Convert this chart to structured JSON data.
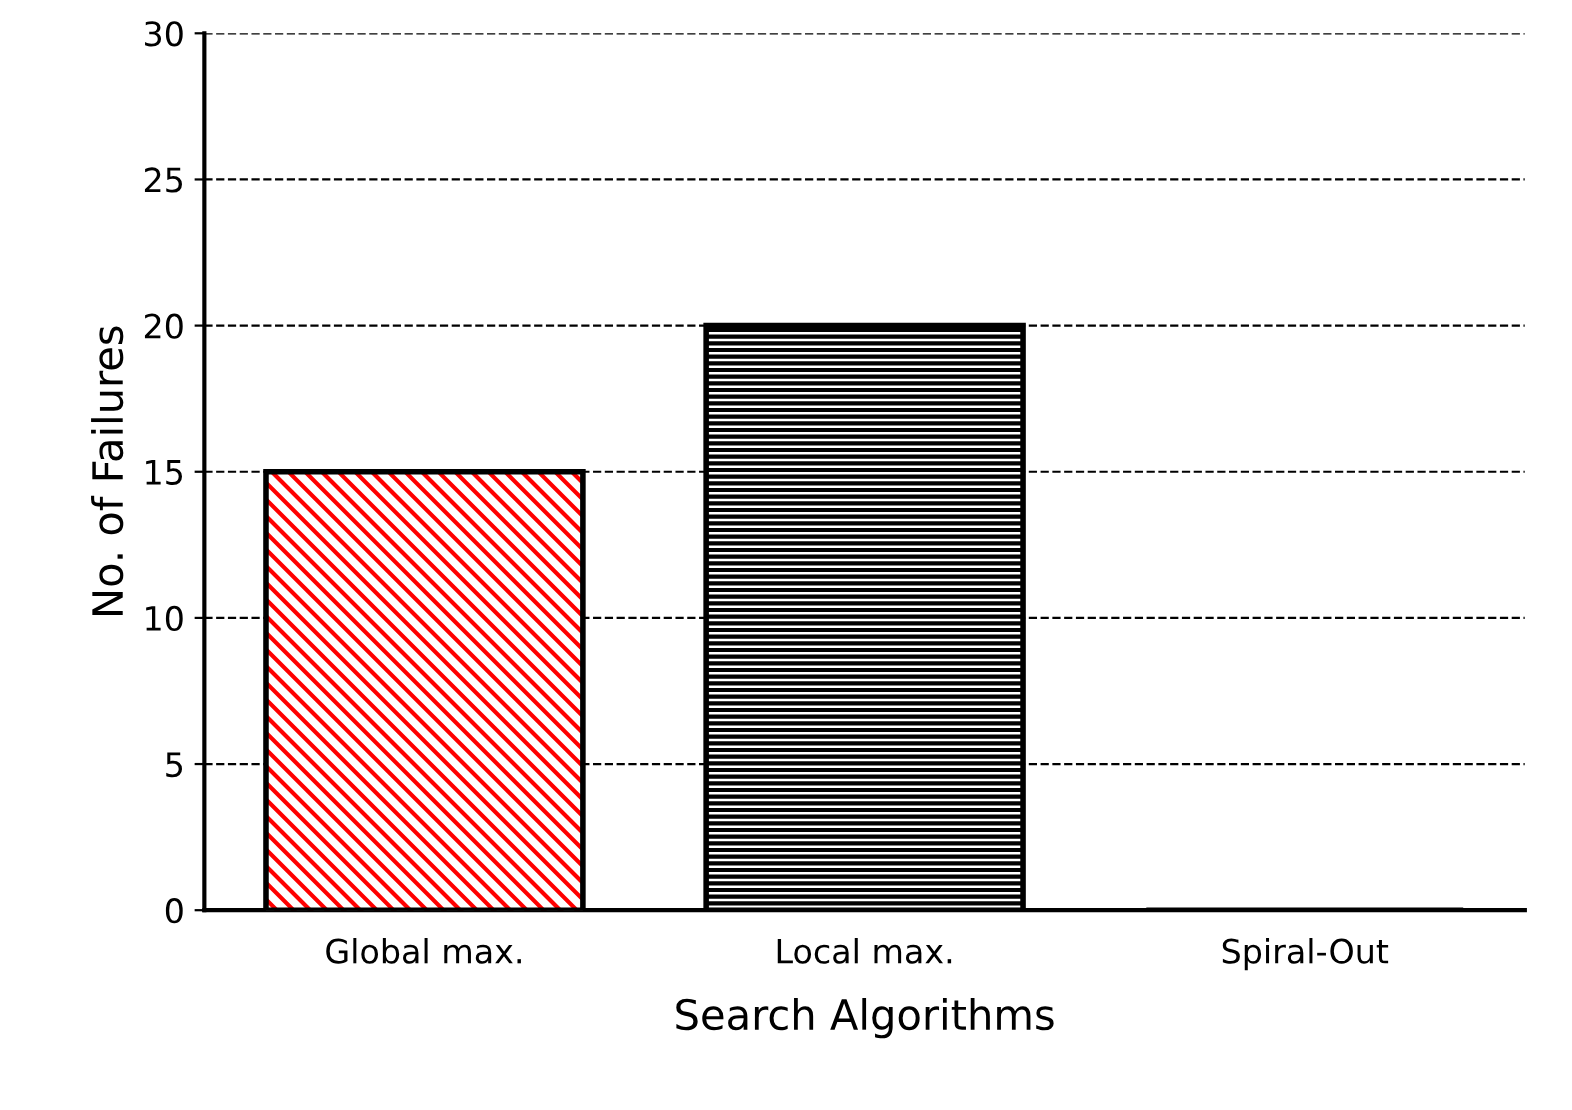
{
  "chart_data": {
    "type": "bar",
    "xlabel": "Search Algorithms",
    "ylabel": "No. of Failures",
    "categories": [
      "Global max.",
      "Local max.",
      "Spiral-Out"
    ],
    "values": [
      15,
      20,
      0
    ],
    "colors": [
      "#ff0000",
      "#000000",
      "#000000"
    ],
    "ylim": [
      0,
      30
    ],
    "yticks": [
      0,
      5,
      10,
      15,
      20,
      25,
      30
    ],
    "grid": "y",
    "legend": false
  }
}
